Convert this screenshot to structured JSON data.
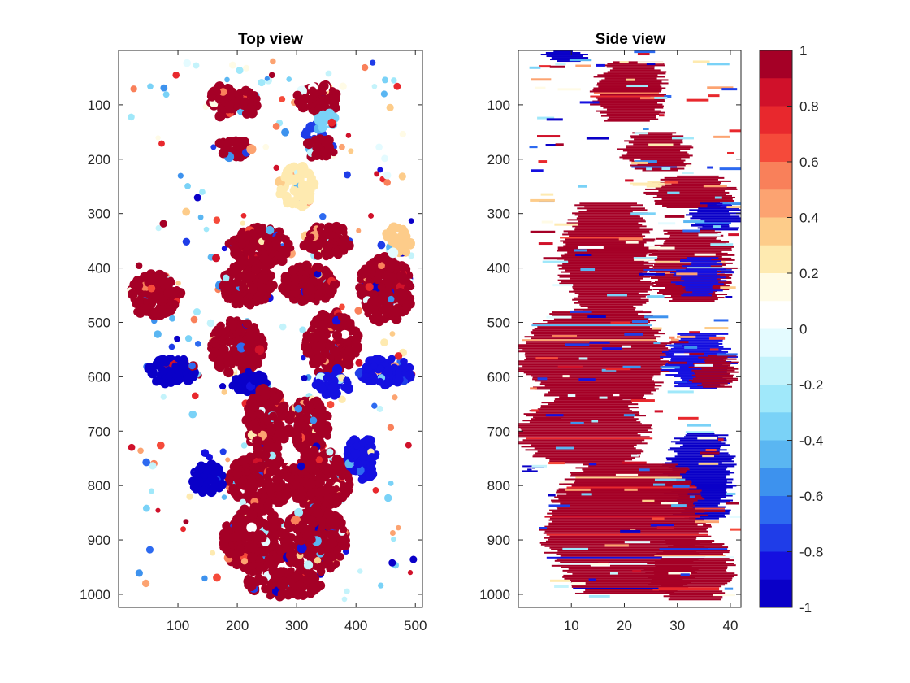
{
  "chart_data": [
    {
      "type": "scatter",
      "title": "Top view",
      "xlabel": "",
      "ylabel": "",
      "xlim": [
        0,
        512
      ],
      "ylim": [
        1024,
        0
      ],
      "xticks": [
        100,
        200,
        300,
        400,
        500
      ],
      "yticks": [
        100,
        200,
        300,
        400,
        500,
        600,
        700,
        800,
        900,
        1000
      ],
      "grid": false,
      "colormap": "diverging red-white-blue",
      "clusters": [
        {
          "x": 175,
          "y": 95,
          "rx": 22,
          "ry": 30,
          "value": 1.0
        },
        {
          "x": 215,
          "y": 95,
          "rx": 20,
          "ry": 25,
          "value": 0.9
        },
        {
          "x": 335,
          "y": 90,
          "rx": 35,
          "ry": 30,
          "value": 1.0
        },
        {
          "x": 330,
          "y": 150,
          "rx": 18,
          "ry": 15,
          "value": -0.7
        },
        {
          "x": 195,
          "y": 180,
          "rx": 30,
          "ry": 18,
          "value": 1.0
        },
        {
          "x": 340,
          "y": 180,
          "rx": 25,
          "ry": 20,
          "value": 1.0
        },
        {
          "x": 350,
          "y": 130,
          "rx": 15,
          "ry": 15,
          "value": -0.3
        },
        {
          "x": 215,
          "y": 430,
          "rx": 45,
          "ry": 40,
          "value": 1.0
        },
        {
          "x": 320,
          "y": 430,
          "rx": 45,
          "ry": 35,
          "value": 1.0
        },
        {
          "x": 240,
          "y": 360,
          "rx": 55,
          "ry": 35,
          "value": 1.0
        },
        {
          "x": 350,
          "y": 350,
          "rx": 40,
          "ry": 30,
          "value": 1.0
        },
        {
          "x": 200,
          "y": 545,
          "rx": 45,
          "ry": 50,
          "value": 1.0
        },
        {
          "x": 360,
          "y": 540,
          "rx": 45,
          "ry": 60,
          "value": 1.0
        },
        {
          "x": 220,
          "y": 610,
          "rx": 30,
          "ry": 20,
          "value": -0.9
        },
        {
          "x": 360,
          "y": 615,
          "rx": 30,
          "ry": 20,
          "value": -0.85
        },
        {
          "x": 90,
          "y": 590,
          "rx": 40,
          "ry": 25,
          "value": -0.9
        },
        {
          "x": 450,
          "y": 590,
          "rx": 45,
          "ry": 25,
          "value": -0.85
        },
        {
          "x": 450,
          "y": 440,
          "rx": 45,
          "ry": 60,
          "value": 1.0
        },
        {
          "x": 60,
          "y": 450,
          "rx": 45,
          "ry": 40,
          "value": 1.0
        },
        {
          "x": 250,
          "y": 680,
          "rx": 35,
          "ry": 60,
          "value": 1.0
        },
        {
          "x": 320,
          "y": 690,
          "rx": 35,
          "ry": 50,
          "value": 1.0
        },
        {
          "x": 240,
          "y": 790,
          "rx": 55,
          "ry": 50,
          "value": 1.0
        },
        {
          "x": 340,
          "y": 790,
          "rx": 50,
          "ry": 55,
          "value": 1.0
        },
        {
          "x": 150,
          "y": 790,
          "rx": 25,
          "ry": 30,
          "value": -0.9
        },
        {
          "x": 410,
          "y": 750,
          "rx": 25,
          "ry": 40,
          "value": -0.85
        },
        {
          "x": 230,
          "y": 900,
          "rx": 55,
          "ry": 60,
          "value": 1.0
        },
        {
          "x": 330,
          "y": 900,
          "rx": 55,
          "ry": 60,
          "value": 1.0
        },
        {
          "x": 280,
          "y": 980,
          "rx": 65,
          "ry": 25,
          "value": 1.0
        },
        {
          "x": 300,
          "y": 250,
          "rx": 30,
          "ry": 40,
          "value": 0.3
        },
        {
          "x": 470,
          "y": 350,
          "rx": 25,
          "ry": 25,
          "value": 0.4
        }
      ]
    },
    {
      "type": "heatmap",
      "title": "Side view",
      "xlabel": "",
      "ylabel": "",
      "xlim": [
        0,
        42
      ],
      "ylim": [
        1024,
        0
      ],
      "xticks": [
        10,
        20,
        30,
        40
      ],
      "yticks": [
        100,
        200,
        300,
        400,
        500,
        600,
        700,
        800,
        900,
        1000
      ],
      "grid": false,
      "blobs": [
        {
          "y0": 0,
          "y1": 20,
          "x0": 5,
          "x1": 12,
          "value": -0.9
        },
        {
          "y0": 20,
          "y1": 130,
          "x0": 14,
          "x1": 28,
          "value": 1.0
        },
        {
          "y0": 150,
          "y1": 220,
          "x0": 20,
          "x1": 32,
          "value": 1.0
        },
        {
          "y0": 230,
          "y1": 290,
          "x0": 25,
          "x1": 40,
          "value": 1.0
        },
        {
          "y0": 280,
          "y1": 330,
          "x0": 33,
          "x1": 41,
          "value": -0.9
        },
        {
          "y0": 280,
          "y1": 480,
          "x0": 8,
          "x1": 25,
          "value": 1.0
        },
        {
          "y0": 330,
          "y1": 460,
          "x0": 25,
          "x1": 40,
          "value": 1.0
        },
        {
          "y0": 380,
          "y1": 450,
          "x0": 30,
          "x1": 38,
          "value": -0.85
        },
        {
          "y0": 480,
          "y1": 640,
          "x0": 0,
          "x1": 28,
          "value": 1.0
        },
        {
          "y0": 520,
          "y1": 620,
          "x0": 28,
          "x1": 40,
          "value": -0.85
        },
        {
          "y0": 560,
          "y1": 620,
          "x0": 33,
          "x1": 41,
          "value": 1.0
        },
        {
          "y0": 640,
          "y1": 760,
          "x0": 0,
          "x1": 24,
          "value": 1.0
        },
        {
          "y0": 700,
          "y1": 860,
          "x0": 28,
          "x1": 40,
          "value": -0.9
        },
        {
          "y0": 760,
          "y1": 1000,
          "x0": 5,
          "x1": 35,
          "value": 1.0
        },
        {
          "y0": 900,
          "y1": 1010,
          "x0": 25,
          "x1": 40,
          "value": 1.0
        },
        {
          "y0": 760,
          "y1": 775,
          "x0": 2,
          "x1": 4,
          "value": -0.9
        },
        {
          "y0": 240,
          "y1": 250,
          "x0": 22,
          "x1": 28,
          "value": 0.3
        }
      ]
    }
  ],
  "colorbar": {
    "min": -1,
    "max": 1,
    "ticks": [
      "1",
      "0.8",
      "0.6",
      "0.4",
      "0.2",
      "0",
      "-0.2",
      "-0.4",
      "-0.6",
      "-0.8",
      "-1"
    ],
    "colors": [
      "#a50026",
      "#d0112a",
      "#e8282d",
      "#f54a3a",
      "#f9805a",
      "#fca371",
      "#fdcc8a",
      "#feeab0",
      "#fffbe6",
      "#ffffff",
      "#e4fbff",
      "#c4f3fb",
      "#a0e8fa",
      "#7ad2f7",
      "#5ab6f2",
      "#3d92ee",
      "#2d6af0",
      "#1f3de8",
      "#1510e0",
      "#0a00c8"
    ]
  }
}
